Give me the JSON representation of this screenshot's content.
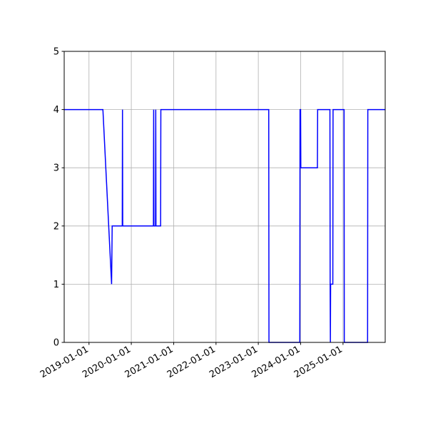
{
  "chart_data": {
    "type": "line",
    "title": "",
    "xlabel": "",
    "ylabel": "",
    "x_axis": {
      "kind": "date",
      "range": [
        "2018-06-01",
        "2025-12-31"
      ],
      "ticks": [
        "2019-01-01",
        "2020-01-01",
        "2021-01-01",
        "2022-01-01",
        "2023-01-01",
        "2024-01-01",
        "2025-01-01"
      ]
    },
    "y_axis": {
      "range": [
        0,
        5
      ],
      "ticks": [
        "0",
        "1",
        "2",
        "3",
        "4",
        "5"
      ]
    },
    "grid": true,
    "legend": "none",
    "series": [
      {
        "color": "#0000ff",
        "points": [
          {
            "x": "2018-06-01",
            "y": 4
          },
          {
            "x": "2019-05-01",
            "y": 4
          },
          {
            "x": "2019-07-15",
            "y": 1
          },
          {
            "x": "2019-07-20",
            "y": 2
          },
          {
            "x": "2019-10-15",
            "y": 2
          },
          {
            "x": "2019-10-17",
            "y": 4
          },
          {
            "x": "2019-10-19",
            "y": 2
          },
          {
            "x": "2020-07-10",
            "y": 2
          },
          {
            "x": "2020-07-12",
            "y": 4
          },
          {
            "x": "2020-07-14",
            "y": 2
          },
          {
            "x": "2020-07-28",
            "y": 2
          },
          {
            "x": "2020-07-30",
            "y": 4
          },
          {
            "x": "2020-08-01",
            "y": 2
          },
          {
            "x": "2020-09-10",
            "y": 2
          },
          {
            "x": "2020-09-12",
            "y": 4
          },
          {
            "x": "2023-04-01",
            "y": 4
          },
          {
            "x": "2023-04-03",
            "y": 0
          },
          {
            "x": "2023-12-25",
            "y": 0
          },
          {
            "x": "2023-12-27",
            "y": 4
          },
          {
            "x": "2024-01-01",
            "y": 4
          },
          {
            "x": "2024-01-03",
            "y": 3
          },
          {
            "x": "2024-05-25",
            "y": 3
          },
          {
            "x": "2024-05-27",
            "y": 4
          },
          {
            "x": "2024-09-10",
            "y": 4
          },
          {
            "x": "2024-09-12",
            "y": 1
          },
          {
            "x": "2024-09-14",
            "y": 0
          },
          {
            "x": "2024-09-16",
            "y": 1
          },
          {
            "x": "2024-10-05",
            "y": 1
          },
          {
            "x": "2024-10-07",
            "y": 4
          },
          {
            "x": "2025-01-10",
            "y": 4
          },
          {
            "x": "2025-01-12",
            "y": 0
          },
          {
            "x": "2025-08-01",
            "y": 0
          },
          {
            "x": "2025-08-03",
            "y": 4
          },
          {
            "x": "2025-12-31",
            "y": 4
          }
        ]
      }
    ]
  }
}
